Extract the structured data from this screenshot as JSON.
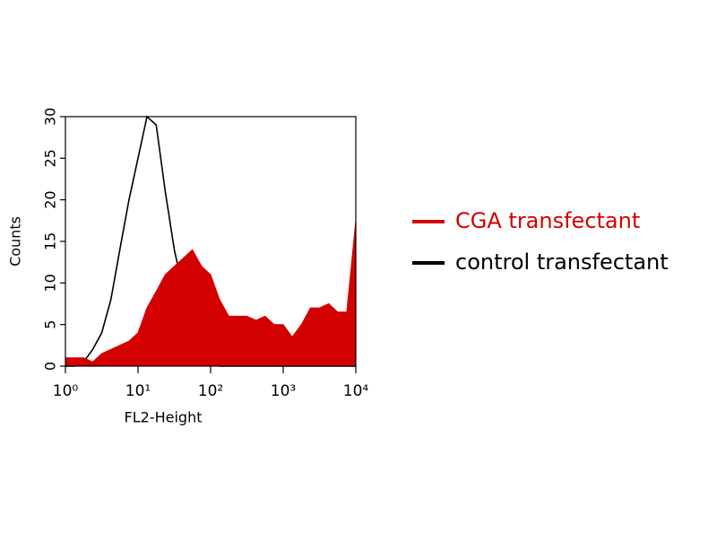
{
  "chart_data": {
    "type": "area",
    "xlabel": "FL2-Height",
    "ylabel": "Counts",
    "xscale": "log",
    "xlim": [
      1,
      10000
    ],
    "xticks": [
      {
        "value": 1,
        "label": "10⁰"
      },
      {
        "value": 10,
        "label": "10¹"
      },
      {
        "value": 100,
        "label": "10²"
      },
      {
        "value": 1000,
        "label": "10³"
      },
      {
        "value": 10000,
        "label": "10⁴"
      }
    ],
    "ylim": [
      0,
      30
    ],
    "yticks": [
      0,
      5,
      10,
      15,
      20,
      25,
      30
    ],
    "legend": "right",
    "x": [
      1,
      1.33,
      1.78,
      2.37,
      3.16,
      4.22,
      5.62,
      7.5,
      10,
      13.3,
      17.8,
      23.7,
      31.6,
      42.2,
      56.2,
      75,
      100,
      133,
      178,
      237,
      316,
      422,
      562,
      750,
      1000,
      1330,
      1780,
      2370,
      3160,
      4220,
      5620,
      7500,
      10000
    ],
    "series": [
      {
        "name": "control transfectant",
        "color": "#000000",
        "style": "line",
        "values": [
          0,
          0,
          0.5,
          2,
          4,
          8,
          14,
          20,
          25,
          30,
          29,
          21,
          14,
          9,
          5,
          2,
          1,
          0,
          0,
          0,
          0,
          0,
          0,
          0,
          0,
          0,
          0,
          0,
          0,
          0,
          0,
          0,
          0
        ]
      },
      {
        "name": "CGA transfectant",
        "color": "#d40000",
        "style": "filled",
        "values": [
          1,
          1,
          1,
          0.5,
          1.5,
          2,
          2.5,
          3,
          4,
          7,
          9,
          11,
          12,
          13,
          14,
          12,
          11,
          8,
          6,
          6,
          6,
          5.5,
          6,
          5,
          5,
          3.5,
          5,
          7,
          7,
          7.5,
          6.5,
          6.5,
          17.5
        ]
      }
    ]
  }
}
